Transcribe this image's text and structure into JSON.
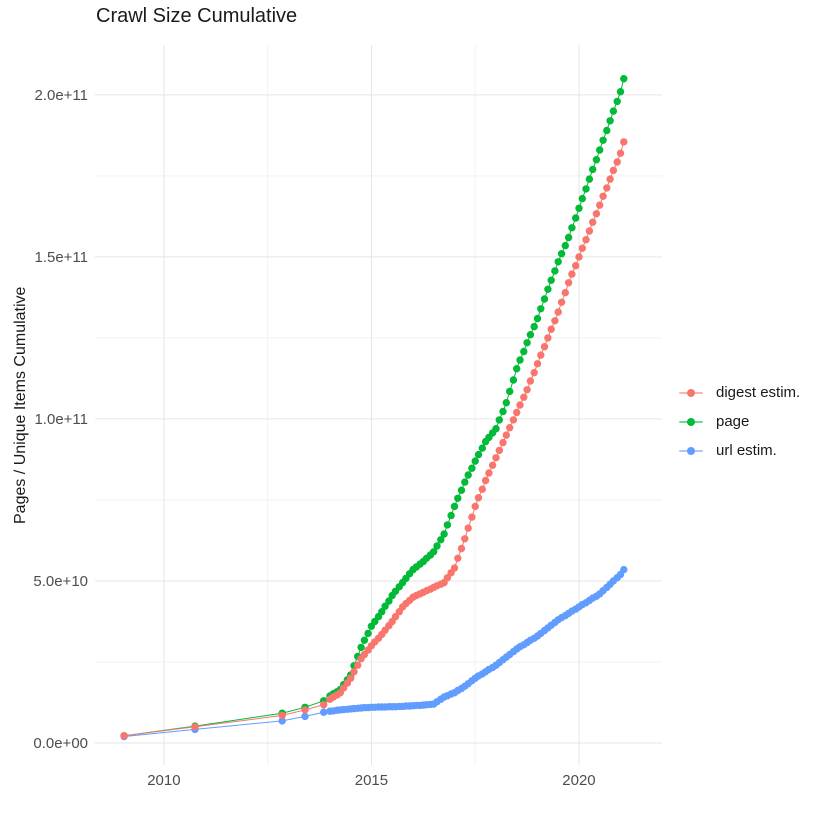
{
  "chart_data": {
    "type": "line",
    "title": "Crawl Size Cumulative",
    "xlabel": "",
    "ylabel": "Pages / Unique Items Cumulative",
    "value_unit": "pages, billions (1e9)",
    "x_axis": {
      "range": [
        2008.34,
        2022.0
      ],
      "ticks": [
        {
          "value": 2010,
          "label": "2010"
        },
        {
          "value": 2015,
          "label": "2015"
        },
        {
          "value": 2020,
          "label": "2020"
        }
      ],
      "minor_ticks": [
        2012.5,
        2017.5
      ]
    },
    "y_axis": {
      "range": [
        -6.8,
        215.4
      ],
      "ticks": [
        {
          "value": 0,
          "label": "0.0e+00"
        },
        {
          "value": 50,
          "label": "5.0e+10"
        },
        {
          "value": 100,
          "label": "1.0e+11"
        },
        {
          "value": 150,
          "label": "1.5e+11"
        },
        {
          "value": 200,
          "label": "2.0e+11"
        }
      ],
      "minor_ticks": [
        25,
        75,
        125,
        175
      ]
    },
    "grid": {
      "major_color": "#e5e5e5",
      "minor_color": "#f2f2f2",
      "background": "#ffffff"
    },
    "legend_position": "right",
    "point_radius": 3.7,
    "series": [
      {
        "name": "page",
        "color": "#00BA38",
        "points": [
          [
            2009.04,
            2.2
          ],
          [
            2010.75,
            5.2
          ],
          [
            2012.85,
            9.2
          ],
          [
            2013.4,
            11
          ],
          [
            2013.85,
            13
          ],
          [
            2014,
            14.5
          ],
          [
            2014.08,
            15.2
          ],
          [
            2014.17,
            15.8
          ],
          [
            2014.25,
            16.5
          ],
          [
            2014.33,
            18
          ],
          [
            2014.42,
            19.5
          ],
          [
            2014.5,
            21
          ],
          [
            2014.58,
            23.8
          ],
          [
            2014.67,
            26.7
          ],
          [
            2014.75,
            29.5
          ],
          [
            2014.83,
            31.7
          ],
          [
            2014.92,
            33.8
          ],
          [
            2015,
            36
          ],
          [
            2015.08,
            37.5
          ],
          [
            2015.17,
            39
          ],
          [
            2015.25,
            40.5
          ],
          [
            2015.33,
            42.2
          ],
          [
            2015.42,
            43.8
          ],
          [
            2015.5,
            45.5
          ],
          [
            2015.58,
            46.8
          ],
          [
            2015.67,
            48.2
          ],
          [
            2015.75,
            49.5
          ],
          [
            2015.83,
            50.8
          ],
          [
            2015.92,
            52.2
          ],
          [
            2016,
            53.5
          ],
          [
            2016.08,
            54.3
          ],
          [
            2016.17,
            55.2
          ],
          [
            2016.25,
            56
          ],
          [
            2016.33,
            57
          ],
          [
            2016.42,
            58
          ],
          [
            2016.5,
            59
          ],
          [
            2016.58,
            60.8
          ],
          [
            2016.67,
            62.7
          ],
          [
            2016.75,
            64.5
          ],
          [
            2016.83,
            67.3
          ],
          [
            2016.92,
            70.2
          ],
          [
            2017,
            73
          ],
          [
            2017.08,
            75.5
          ],
          [
            2017.17,
            78
          ],
          [
            2017.25,
            80.5
          ],
          [
            2017.33,
            82.7
          ],
          [
            2017.42,
            84.8
          ],
          [
            2017.5,
            87
          ],
          [
            2017.58,
            89
          ],
          [
            2017.67,
            91
          ],
          [
            2017.75,
            93
          ],
          [
            2017.83,
            94.3
          ],
          [
            2017.92,
            95.7
          ],
          [
            2018,
            97
          ],
          [
            2018.08,
            99.7
          ],
          [
            2018.17,
            102.3
          ],
          [
            2018.25,
            105
          ],
          [
            2018.33,
            108.5
          ],
          [
            2018.42,
            112
          ],
          [
            2018.5,
            115.5
          ],
          [
            2018.58,
            118.2
          ],
          [
            2018.67,
            120.8
          ],
          [
            2018.75,
            123.5
          ],
          [
            2018.83,
            126
          ],
          [
            2018.92,
            128.5
          ],
          [
            2019,
            131
          ],
          [
            2019.08,
            134
          ],
          [
            2019.17,
            137
          ],
          [
            2019.25,
            140
          ],
          [
            2019.33,
            142.8
          ],
          [
            2019.42,
            145.7
          ],
          [
            2019.5,
            148.5
          ],
          [
            2019.58,
            151
          ],
          [
            2019.67,
            153.5
          ],
          [
            2019.75,
            156
          ],
          [
            2019.83,
            159
          ],
          [
            2019.92,
            162
          ],
          [
            2020,
            165
          ],
          [
            2020.08,
            168
          ],
          [
            2020.17,
            171
          ],
          [
            2020.25,
            174
          ],
          [
            2020.33,
            177
          ],
          [
            2020.42,
            180
          ],
          [
            2020.5,
            183
          ],
          [
            2020.58,
            186
          ],
          [
            2020.67,
            189
          ],
          [
            2020.75,
            192
          ],
          [
            2020.83,
            195
          ],
          [
            2020.92,
            198
          ],
          [
            2021,
            201
          ],
          [
            2021.08,
            205
          ]
        ]
      },
      {
        "name": "url estim.",
        "color": "#619CFF",
        "points": [
          [
            2009.04,
            2
          ],
          [
            2010.75,
            4.2
          ],
          [
            2012.85,
            6.8
          ],
          [
            2013.4,
            8.2
          ],
          [
            2013.85,
            9.5
          ],
          [
            2014,
            9.8
          ],
          [
            2014.08,
            9.9
          ],
          [
            2014.17,
            10.1
          ],
          [
            2014.25,
            10.2
          ],
          [
            2014.33,
            10.3
          ],
          [
            2014.42,
            10.4
          ],
          [
            2014.5,
            10.5
          ],
          [
            2014.58,
            10.6
          ],
          [
            2014.67,
            10.7
          ],
          [
            2014.75,
            10.8
          ],
          [
            2014.83,
            10.9
          ],
          [
            2014.92,
            10.9
          ],
          [
            2015,
            11
          ],
          [
            2015.08,
            11
          ],
          [
            2015.17,
            11.1
          ],
          [
            2015.25,
            11.1
          ],
          [
            2015.33,
            11.1
          ],
          [
            2015.42,
            11.2
          ],
          [
            2015.5,
            11.2
          ],
          [
            2015.58,
            11.2
          ],
          [
            2015.67,
            11.3
          ],
          [
            2015.75,
            11.3
          ],
          [
            2015.83,
            11.4
          ],
          [
            2015.92,
            11.4
          ],
          [
            2016,
            11.5
          ],
          [
            2016.08,
            11.6
          ],
          [
            2016.17,
            11.6
          ],
          [
            2016.25,
            11.7
          ],
          [
            2016.33,
            11.8
          ],
          [
            2016.42,
            11.9
          ],
          [
            2016.5,
            12
          ],
          [
            2016.58,
            12.7
          ],
          [
            2016.67,
            13.5
          ],
          [
            2016.75,
            14.2
          ],
          [
            2016.83,
            14.6
          ],
          [
            2016.92,
            15.1
          ],
          [
            2017,
            15.5
          ],
          [
            2017.08,
            16.2
          ],
          [
            2017.17,
            16.8
          ],
          [
            2017.25,
            17.5
          ],
          [
            2017.33,
            18.3
          ],
          [
            2017.42,
            19.2
          ],
          [
            2017.5,
            20
          ],
          [
            2017.58,
            20.7
          ],
          [
            2017.67,
            21.3
          ],
          [
            2017.75,
            22
          ],
          [
            2017.83,
            22.7
          ],
          [
            2017.92,
            23.3
          ],
          [
            2018,
            24
          ],
          [
            2018.08,
            24.8
          ],
          [
            2018.17,
            25.7
          ],
          [
            2018.25,
            26.5
          ],
          [
            2018.33,
            27.3
          ],
          [
            2018.42,
            28.2
          ],
          [
            2018.5,
            29
          ],
          [
            2018.58,
            29.7
          ],
          [
            2018.67,
            30.3
          ],
          [
            2018.75,
            31
          ],
          [
            2018.83,
            31.7
          ],
          [
            2018.92,
            32.3
          ],
          [
            2019,
            33
          ],
          [
            2019.08,
            33.8
          ],
          [
            2019.17,
            34.7
          ],
          [
            2019.25,
            35.5
          ],
          [
            2019.33,
            36.3
          ],
          [
            2019.42,
            37.2
          ],
          [
            2019.5,
            38
          ],
          [
            2019.58,
            38.7
          ],
          [
            2019.67,
            39.3
          ],
          [
            2019.75,
            40
          ],
          [
            2019.83,
            40.7
          ],
          [
            2019.92,
            41.3
          ],
          [
            2020,
            42
          ],
          [
            2020.08,
            42.7
          ],
          [
            2020.17,
            43.3
          ],
          [
            2020.25,
            44
          ],
          [
            2020.33,
            44.7
          ],
          [
            2020.42,
            45.3
          ],
          [
            2020.5,
            46
          ],
          [
            2020.58,
            47
          ],
          [
            2020.67,
            48
          ],
          [
            2020.75,
            49
          ],
          [
            2020.83,
            50
          ],
          [
            2020.92,
            51
          ],
          [
            2021,
            52
          ],
          [
            2021.08,
            53.5
          ]
        ]
      },
      {
        "name": "digest estim.",
        "color": "#F8766D",
        "points": [
          [
            2009.04,
            2.2
          ],
          [
            2010.75,
            5
          ],
          [
            2012.85,
            8.5
          ],
          [
            2013.4,
            10.2
          ],
          [
            2013.85,
            11.8
          ],
          [
            2014,
            13.5
          ],
          [
            2014.08,
            14.2
          ],
          [
            2014.17,
            14.8
          ],
          [
            2014.25,
            15.5
          ],
          [
            2014.33,
            17
          ],
          [
            2014.42,
            18.5
          ],
          [
            2014.5,
            20
          ],
          [
            2014.58,
            22
          ],
          [
            2014.67,
            24
          ],
          [
            2014.75,
            26
          ],
          [
            2014.83,
            27.3
          ],
          [
            2014.92,
            28.7
          ],
          [
            2015,
            30
          ],
          [
            2015.08,
            31.2
          ],
          [
            2015.17,
            32.3
          ],
          [
            2015.25,
            33.5
          ],
          [
            2015.33,
            34.8
          ],
          [
            2015.42,
            36.2
          ],
          [
            2015.5,
            37.5
          ],
          [
            2015.58,
            39
          ],
          [
            2015.67,
            40.5
          ],
          [
            2015.75,
            42
          ],
          [
            2015.83,
            43
          ],
          [
            2015.92,
            44
          ],
          [
            2016,
            45
          ],
          [
            2016.08,
            45.5
          ],
          [
            2016.17,
            46
          ],
          [
            2016.25,
            46.5
          ],
          [
            2016.33,
            47
          ],
          [
            2016.42,
            47.5
          ],
          [
            2016.5,
            48
          ],
          [
            2016.58,
            48.5
          ],
          [
            2016.67,
            49
          ],
          [
            2016.75,
            49.5
          ],
          [
            2016.83,
            51
          ],
          [
            2016.92,
            52.5
          ],
          [
            2017,
            54
          ],
          [
            2017.08,
            57
          ],
          [
            2017.17,
            60
          ],
          [
            2017.25,
            63
          ],
          [
            2017.33,
            66.3
          ],
          [
            2017.42,
            69.7
          ],
          [
            2017.5,
            73
          ],
          [
            2017.58,
            75.7
          ],
          [
            2017.67,
            78.3
          ],
          [
            2017.75,
            81
          ],
          [
            2017.83,
            83.3
          ],
          [
            2017.92,
            85.7
          ],
          [
            2018,
            88
          ],
          [
            2018.08,
            90.3
          ],
          [
            2018.17,
            92.7
          ],
          [
            2018.25,
            95
          ],
          [
            2018.33,
            97.3
          ],
          [
            2018.42,
            99.7
          ],
          [
            2018.5,
            102
          ],
          [
            2018.58,
            104.3
          ],
          [
            2018.67,
            106.7
          ],
          [
            2018.75,
            109
          ],
          [
            2018.83,
            111.7
          ],
          [
            2018.92,
            114.3
          ],
          [
            2019,
            117
          ],
          [
            2019.08,
            119.7
          ],
          [
            2019.17,
            122.3
          ],
          [
            2019.25,
            125
          ],
          [
            2019.33,
            127.7
          ],
          [
            2019.42,
            130.3
          ],
          [
            2019.5,
            133
          ],
          [
            2019.58,
            136
          ],
          [
            2019.67,
            139
          ],
          [
            2019.75,
            142
          ],
          [
            2019.83,
            144.7
          ],
          [
            2019.92,
            147.3
          ],
          [
            2020,
            150
          ],
          [
            2020.08,
            152.7
          ],
          [
            2020.17,
            155.3
          ],
          [
            2020.25,
            158
          ],
          [
            2020.33,
            160.7
          ],
          [
            2020.42,
            163.3
          ],
          [
            2020.5,
            166
          ],
          [
            2020.58,
            168.7
          ],
          [
            2020.67,
            171.3
          ],
          [
            2020.75,
            174
          ],
          [
            2020.83,
            176.7
          ],
          [
            2020.92,
            179.3
          ],
          [
            2021,
            182
          ],
          [
            2021.08,
            185.5
          ]
        ]
      }
    ]
  },
  "legend": {
    "items": [
      {
        "label": "digest estim.",
        "color": "#F8766D"
      },
      {
        "label": "page",
        "color": "#00BA38"
      },
      {
        "label": "url estim.",
        "color": "#619CFF"
      }
    ]
  }
}
